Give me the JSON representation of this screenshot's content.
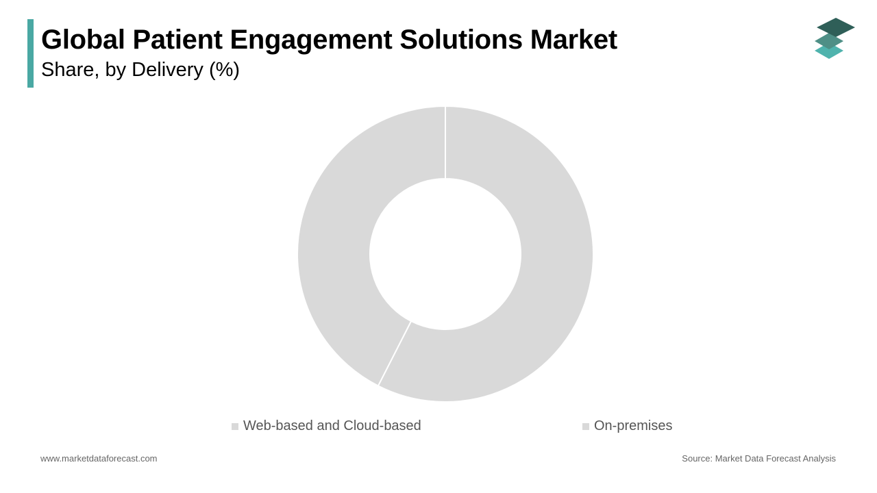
{
  "header": {
    "title": "Global Patient Engagement Solutions Market",
    "subtitle": "Share, by Delivery (%)"
  },
  "colors": {
    "accent": "#4aa8a3",
    "slice": "#d9d9d9",
    "logo_dark": "#2f5f58",
    "logo_mid": "#4e8f86",
    "logo_light": "#4fb3ad"
  },
  "chart_data": {
    "type": "pie",
    "style": "donut",
    "title": "Global Patient Engagement Solutions Market",
    "subtitle": "Share, by Delivery (%)",
    "categories": [
      "Web-based and Cloud-based",
      "On-premises"
    ],
    "values": [
      57.5,
      42.5
    ],
    "legend": "bottom"
  },
  "legend": {
    "items": [
      {
        "label": "Web-based and Cloud-based"
      },
      {
        "label": "On-premises"
      }
    ]
  },
  "footer": {
    "website": "www.marketdataforecast.com",
    "source": "Source: Market Data Forecast Analysis"
  }
}
